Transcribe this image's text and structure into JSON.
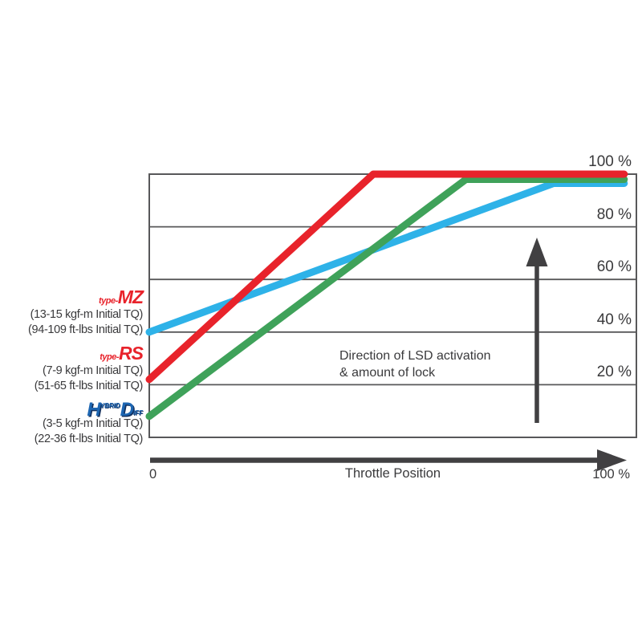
{
  "colors": {
    "red": "#e8232b",
    "green": "#3fa25a",
    "cyan": "#2eb2e8",
    "brand_red": "#e8232b",
    "brand_blue": "#1d66b2",
    "axis": "#414042",
    "grid": "#58585a",
    "text": "#3a3a3c"
  },
  "chart_data": {
    "type": "line",
    "title": "",
    "xlabel": "Throttle Position",
    "x_min_label": "0",
    "x_max_label": "100 %",
    "x_axis": {
      "range": [
        0,
        100
      ],
      "unit": "%"
    },
    "y_axis": {
      "range": [
        0,
        100
      ],
      "unit": "%",
      "grid": true,
      "labels_position": "right",
      "ticks": [
        {
          "label": "100 %",
          "value": 100
        },
        {
          "label": "80 %",
          "value": 80
        },
        {
          "label": "60 %",
          "value": 60
        },
        {
          "label": "40 %",
          "value": 40
        },
        {
          "label": "20 %",
          "value": 20
        }
      ]
    },
    "annotation": {
      "line1": "Direction of LSD activation",
      "line2": "& amount of lock"
    },
    "series": [
      {
        "name": "type-MZ",
        "color": "#2eb2e8",
        "points": [
          [
            0,
            40
          ],
          [
            83,
            96.5
          ],
          [
            97.5,
            96.5
          ]
        ]
      },
      {
        "name": "HYBRID-Diff",
        "color": "#3fa25a",
        "points": [
          [
            0,
            8
          ],
          [
            65,
            98
          ],
          [
            97.5,
            98
          ]
        ]
      },
      {
        "name": "type-RS",
        "color": "#e8232b",
        "points": [
          [
            0,
            22
          ],
          [
            46,
            100
          ],
          [
            97.5,
            100
          ]
        ]
      }
    ]
  },
  "legend": {
    "items": [
      {
        "brand_prefix": "type-",
        "brand_name": "MZ",
        "torque_kgf": "(13-15 kgf-m Initial TQ)",
        "torque_ftlbs": "(94-109 ft-lbs Initial TQ)"
      },
      {
        "brand_prefix": "type-",
        "brand_name": "RS",
        "torque_kgf": "(7-9 kgf-m Initial TQ)",
        "torque_ftlbs": "(51-65 ft-lbs Initial TQ)"
      },
      {
        "brand_main_1": "H",
        "brand_small_1": "YBRID",
        "brand_main_2": "D",
        "brand_small_2": "IFF",
        "torque_kgf": "(3-5 kgf-m Initial TQ)",
        "torque_ftlbs": "(22-36 ft-lbs Initial TQ)"
      }
    ]
  }
}
